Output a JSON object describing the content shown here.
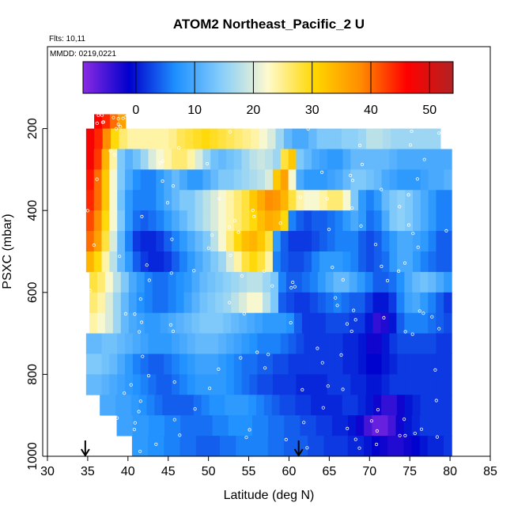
{
  "chart_data": {
    "type": "heatmap",
    "title": "ATOM2 Northeast_Pacific_2 U",
    "subtitle_flights": "Flts: 10,11",
    "subtitle_dates": "MMDD: 0219,0221",
    "xlabel": "Latitude (deg N)",
    "ylabel": "PSXC (mbar)",
    "xlim": [
      30,
      85
    ],
    "ylim": [
      1000,
      0
    ],
    "x_ticks": [
      "30",
      "35",
      "40",
      "45",
      "50",
      "55",
      "60",
      "65",
      "70",
      "75",
      "80",
      "85"
    ],
    "y_ticks": [
      "200",
      "400",
      "600",
      "800",
      "1000"
    ],
    "colorbar": {
      "range": [
        -9,
        54
      ],
      "ticks": [
        "0",
        "10",
        "20",
        "30",
        "40",
        "50"
      ],
      "colors": [
        "#8a2be2",
        "#0000cd",
        "#1e90ff",
        "#87cefa",
        "#fffacd",
        "#ffd700",
        "#ff8c00",
        "#ff0000",
        "#b22222"
      ]
    },
    "markers": {
      "arrow_latitudes": [
        34.7,
        61.2
      ]
    },
    "field_rows": [
      {
        "p": [
          165,
          200
        ],
        "x": [
          35.8,
          39.7
        ],
        "v": [
          46,
          44,
          40,
          36
        ]
      },
      {
        "p": [
          200,
          250
        ],
        "x": [
          34.8,
          78.8
        ],
        "v": [
          47,
          44,
          38,
          30,
          26,
          24,
          24,
          24,
          24,
          24,
          25,
          27,
          28,
          29,
          30,
          29,
          28,
          27,
          26,
          25,
          24,
          22,
          20,
          16,
          12,
          10,
          10,
          12,
          14,
          14,
          14,
          15,
          15,
          16,
          18,
          18,
          17,
          16,
          16,
          16,
          16,
          16,
          16
        ]
      },
      {
        "p": [
          250,
          300
        ],
        "x": [
          34.8,
          80.2
        ],
        "v": [
          47,
          43,
          34,
          24,
          14,
          11,
          13,
          16,
          20,
          22,
          24,
          26,
          26,
          24,
          20,
          16,
          13,
          12,
          13,
          14,
          16,
          18,
          19,
          18,
          16,
          28,
          32,
          14,
          12,
          10,
          9,
          8,
          8,
          10,
          12,
          12,
          12,
          12,
          12,
          11,
          10,
          10,
          10,
          10,
          10,
          10,
          10
        ]
      },
      {
        "p": [
          300,
          350
        ],
        "x": [
          34.8,
          80.2
        ],
        "v": [
          45,
          40,
          32,
          22,
          14,
          10,
          7,
          6,
          6,
          8,
          10,
          12,
          10,
          8,
          8,
          10,
          12,
          14,
          14,
          15,
          16,
          17,
          18,
          20,
          32,
          36,
          22,
          10,
          8,
          8,
          8,
          9,
          10,
          12,
          14,
          14,
          13,
          12,
          10,
          9,
          8,
          8,
          8,
          9,
          10,
          10,
          11
        ]
      },
      {
        "p": [
          350,
          400
        ],
        "x": [
          34.8,
          80.2
        ],
        "v": [
          44,
          40,
          32,
          22,
          13,
          8,
          6,
          6,
          6,
          8,
          10,
          12,
          14,
          14,
          16,
          18,
          20,
          22,
          24,
          26,
          28,
          32,
          35,
          38,
          37,
          34,
          28,
          24,
          22,
          22,
          24,
          26,
          26,
          22,
          14,
          8,
          6,
          8,
          12,
          14,
          15,
          14,
          12,
          10,
          8,
          6,
          6
        ]
      },
      {
        "p": [
          400,
          450
        ],
        "x": [
          34.8,
          80.2
        ],
        "v": [
          42,
          38,
          30,
          22,
          14,
          8,
          5,
          4,
          5,
          6,
          8,
          10,
          12,
          14,
          16,
          18,
          20,
          22,
          24,
          26,
          28,
          30,
          33,
          35,
          34,
          30,
          6,
          4,
          3,
          4,
          4,
          5,
          6,
          8,
          10,
          8,
          5,
          6,
          10,
          14,
          15,
          14,
          12,
          10,
          8,
          6,
          6
        ]
      },
      {
        "p": [
          450,
          500
        ],
        "x": [
          34.8,
          80.2
        ],
        "v": [
          40,
          36,
          28,
          20,
          12,
          6,
          2,
          1,
          1,
          2,
          4,
          6,
          8,
          10,
          12,
          14,
          18,
          22,
          26,
          30,
          33,
          34,
          32,
          28,
          8,
          4,
          2,
          2,
          2,
          3,
          4,
          5,
          6,
          6,
          6,
          4,
          3,
          4,
          6,
          8,
          10,
          10,
          9,
          8,
          6,
          4,
          4
        ]
      },
      {
        "p": [
          500,
          550
        ],
        "x": [
          34.8,
          80.2
        ],
        "v": [
          34,
          30,
          24,
          18,
          12,
          8,
          4,
          2,
          1,
          1,
          2,
          4,
          6,
          8,
          10,
          12,
          14,
          16,
          20,
          24,
          28,
          30,
          28,
          24,
          6,
          4,
          3,
          3,
          4,
          6,
          8,
          8,
          8,
          7,
          6,
          4,
          3,
          4,
          5,
          8,
          10,
          10,
          8,
          6,
          5,
          4,
          4
        ]
      },
      {
        "p": [
          550,
          600
        ],
        "x": [
          35.2,
          80.2
        ],
        "v": [
          28,
          26,
          22,
          18,
          14,
          10,
          8,
          6,
          5,
          5,
          6,
          7,
          8,
          10,
          12,
          13,
          14,
          15,
          16,
          17,
          18,
          18,
          16,
          14,
          6,
          4,
          4,
          5,
          6,
          8,
          10,
          12,
          12,
          10,
          8,
          6,
          4,
          4,
          5,
          7,
          10,
          12,
          13,
          12,
          10,
          8
        ]
      },
      {
        "p": [
          600,
          650
        ],
        "x": [
          35.2,
          80.2
        ],
        "v": [
          26,
          24,
          20,
          16,
          12,
          9,
          7,
          6,
          5,
          5,
          6,
          7,
          9,
          11,
          13,
          14,
          15,
          16,
          18,
          20,
          22,
          22,
          18,
          14,
          4,
          3,
          2,
          2,
          3,
          4,
          5,
          6,
          5,
          4,
          4,
          2,
          0,
          0,
          2,
          6,
          9,
          10,
          8,
          6,
          4,
          2
        ]
      },
      {
        "p": [
          650,
          700
        ],
        "x": [
          35.2,
          80.2
        ],
        "v": [
          24,
          22,
          20,
          16,
          12,
          10,
          9,
          8,
          8,
          9,
          10,
          11,
          12,
          13,
          14,
          14,
          14,
          13,
          12,
          11,
          10,
          9,
          8,
          8,
          8,
          7,
          4,
          2,
          2,
          2,
          3,
          3,
          3,
          2,
          2,
          0,
          -4,
          -3,
          0,
          4,
          6,
          6,
          6,
          5,
          4,
          3
        ]
      },
      {
        "p": [
          700,
          750
        ],
        "x": [
          34.8,
          80.2
        ],
        "v": [
          12,
          12,
          13,
          13,
          12,
          11,
          10,
          9,
          8,
          8,
          8,
          9,
          10,
          11,
          12,
          12,
          12,
          11,
          10,
          9,
          8,
          7,
          6,
          6,
          6,
          5,
          4,
          3,
          2,
          2,
          2,
          2,
          2,
          1,
          1,
          0,
          -2,
          -2,
          0,
          2,
          3,
          3,
          3,
          3,
          3,
          2,
          2
        ]
      },
      {
        "p": [
          750,
          800
        ],
        "x": [
          34.8,
          80.2
        ],
        "v": [
          14,
          14,
          13,
          12,
          10,
          8,
          6,
          5,
          4,
          4,
          5,
          6,
          7,
          8,
          9,
          9,
          9,
          8,
          7,
          6,
          5,
          5,
          4,
          4,
          3,
          3,
          2,
          2,
          2,
          2,
          2,
          2,
          2,
          1,
          1,
          0,
          -1,
          -1,
          0,
          1,
          2,
          2,
          2,
          2,
          2,
          2,
          2
        ]
      },
      {
        "p": [
          800,
          850
        ],
        "x": [
          34.8,
          80.2
        ],
        "v": [
          12,
          12,
          11,
          10,
          9,
          8,
          7,
          6,
          5,
          4,
          4,
          5,
          6,
          7,
          8,
          8,
          8,
          8,
          7,
          6,
          5,
          4,
          3,
          3,
          2,
          2,
          2,
          1,
          1,
          1,
          1,
          2,
          2,
          2,
          1,
          1,
          0,
          0,
          1,
          2,
          2,
          2,
          2,
          2,
          2,
          2,
          2
        ]
      },
      {
        "p": [
          850,
          900
        ],
        "x": [
          36.5,
          80.2
        ],
        "v": [
          10,
          10,
          9,
          9,
          8,
          7,
          6,
          5,
          4,
          4,
          4,
          4,
          5,
          6,
          7,
          7,
          8,
          8,
          8,
          7,
          6,
          5,
          4,
          3,
          3,
          2,
          2,
          1,
          1,
          1,
          1,
          2,
          2,
          1,
          0,
          -2,
          -4,
          -4,
          -2,
          0,
          1,
          2,
          2,
          2,
          2
        ]
      },
      {
        "p": [
          900,
          950
        ],
        "x": [
          38.6,
          80.2
        ],
        "v": [
          9,
          9,
          8,
          8,
          7,
          7,
          6,
          6,
          5,
          5,
          5,
          5,
          6,
          6,
          7,
          7,
          7,
          6,
          6,
          5,
          5,
          4,
          4,
          3,
          3,
          2,
          2,
          1,
          1,
          0,
          -2,
          -5,
          -7,
          -7,
          -5,
          -2,
          0,
          1,
          2,
          2,
          2,
          2
        ]
      },
      {
        "p": [
          950,
          1000
        ],
        "x": [
          40.5,
          80.2
        ],
        "v": [
          8,
          8,
          7,
          7,
          6,
          6,
          5,
          5,
          4,
          4,
          4,
          5,
          5,
          6,
          6,
          6,
          6,
          5,
          5,
          4,
          4,
          4,
          3,
          3,
          2,
          2,
          2,
          1,
          1,
          0,
          -1,
          -2,
          -3,
          -3,
          -2,
          -1,
          0,
          1,
          1,
          2
        ]
      }
    ]
  }
}
